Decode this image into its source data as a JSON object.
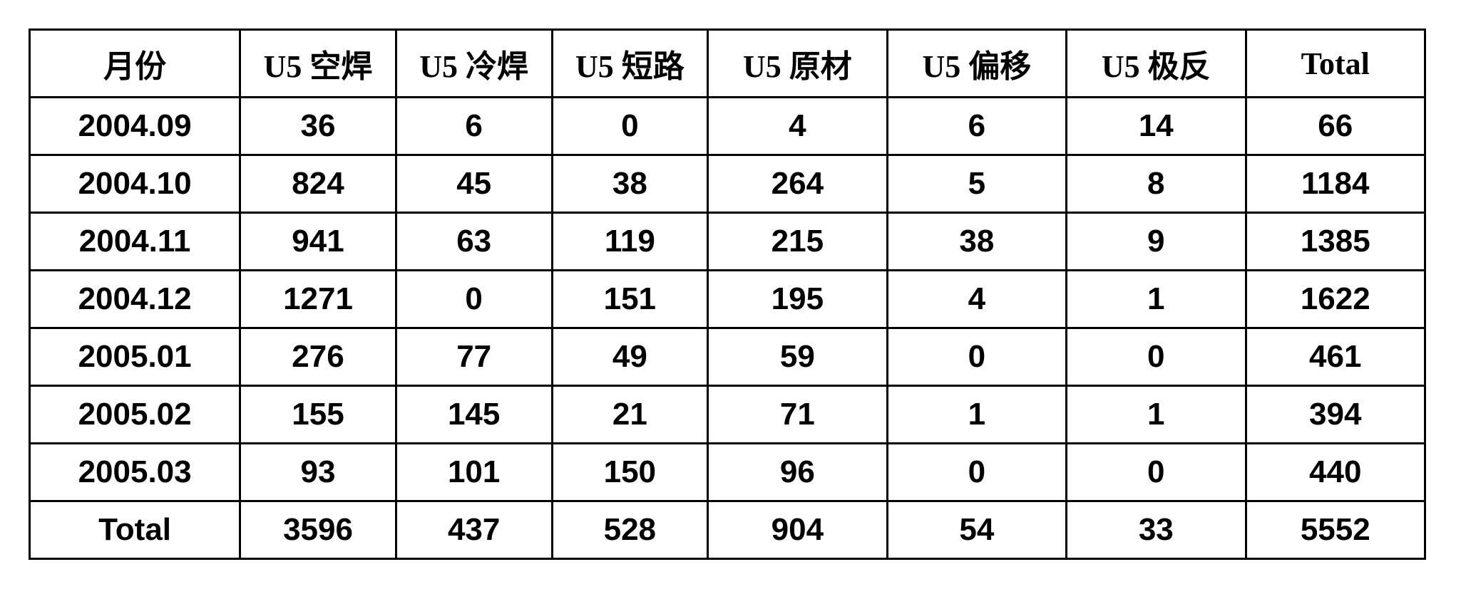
{
  "table": {
    "type": "table",
    "border_color": "#000000",
    "background_color": "#ffffff",
    "text_color": "#000000",
    "font_size_pt": 33,
    "font_weight": "bold",
    "columns": [
      {
        "key": "month",
        "label": "月份",
        "width_class": "col-month"
      },
      {
        "key": "c1",
        "label": "U5 空焊",
        "width_class": "col-narrow"
      },
      {
        "key": "c2",
        "label": "U5 冷焊",
        "width_class": "col-narrow"
      },
      {
        "key": "c3",
        "label": "U5 短路",
        "width_class": "col-narrow"
      },
      {
        "key": "c4",
        "label": "U5 原材",
        "width_class": "col-wide"
      },
      {
        "key": "c5",
        "label": "U5 偏移",
        "width_class": "col-wide"
      },
      {
        "key": "c6",
        "label": "U5 极反",
        "width_class": "col-wide"
      },
      {
        "key": "tot",
        "label": "Total",
        "width_class": "col-wide"
      }
    ],
    "rows": [
      {
        "month": "2004.09",
        "c1": "36",
        "c2": "6",
        "c3": "0",
        "c4": "4",
        "c5": "6",
        "c6": "14",
        "tot": "66"
      },
      {
        "month": "2004.10",
        "c1": "824",
        "c2": "45",
        "c3": "38",
        "c4": "264",
        "c5": "5",
        "c6": "8",
        "tot": "1184"
      },
      {
        "month": "2004.11",
        "c1": "941",
        "c2": "63",
        "c3": "119",
        "c4": "215",
        "c5": "38",
        "c6": "9",
        "tot": "1385"
      },
      {
        "month": "2004.12",
        "c1": "1271",
        "c2": "0",
        "c3": "151",
        "c4": "195",
        "c5": "4",
        "c6": "1",
        "tot": "1622"
      },
      {
        "month": "2005.01",
        "c1": "276",
        "c2": "77",
        "c3": "49",
        "c4": "59",
        "c5": "0",
        "c6": "0",
        "tot": "461"
      },
      {
        "month": "2005.02",
        "c1": "155",
        "c2": "145",
        "c3": "21",
        "c4": "71",
        "c5": "1",
        "c6": "1",
        "tot": "394"
      },
      {
        "month": "2005.03",
        "c1": "93",
        "c2": "101",
        "c3": "150",
        "c4": "96",
        "c5": "0",
        "c6": "0",
        "tot": "440"
      },
      {
        "month": "Total",
        "c1": "3596",
        "c2": "437",
        "c3": "528",
        "c4": "904",
        "c5": "54",
        "c6": "33",
        "tot": "5552"
      }
    ]
  }
}
